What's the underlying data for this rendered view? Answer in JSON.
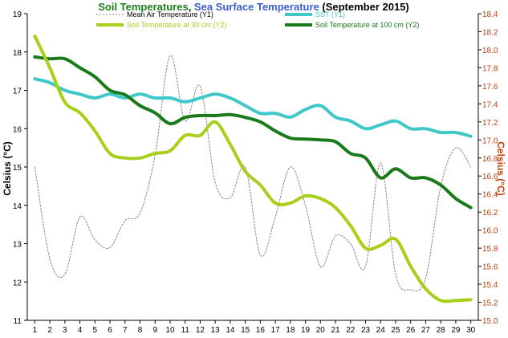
{
  "title": {
    "part1": "Soil Temperatures",
    "sep": ", ",
    "part2": "Sea Surface Temperature",
    "part3": " (September 2015)",
    "colors": {
      "part1": "#1a7f1a",
      "part2": "#3a5fcd",
      "part3": "#000000"
    }
  },
  "chart_data": {
    "type": "line",
    "title": "Soil Temperatures, Sea Surface Temperature (September 2015)",
    "x": [
      1,
      2,
      3,
      4,
      5,
      6,
      7,
      8,
      9,
      10,
      11,
      12,
      13,
      14,
      15,
      16,
      17,
      18,
      19,
      20,
      21,
      22,
      23,
      24,
      25,
      26,
      27,
      28,
      29,
      30
    ],
    "x_tick_labels": [
      "1",
      "2",
      "3",
      "4",
      "5",
      "6",
      "7",
      "8",
      "9",
      "10",
      "11",
      "12",
      "13",
      "14",
      "15",
      "16",
      "17",
      "18",
      "19",
      "20",
      "21",
      "22",
      "23",
      "24",
      "25",
      "26",
      "27",
      "28",
      "29",
      "30"
    ],
    "y1": {
      "label": "Celsius (°C)",
      "min": 11,
      "max": 19,
      "ticks": [
        "11",
        "12",
        "13",
        "14",
        "15",
        "16",
        "17",
        "18",
        "19"
      ],
      "tick_values": [
        11,
        12,
        13,
        14,
        15,
        16,
        17,
        18,
        19
      ],
      "color": "#000000"
    },
    "y2": {
      "label": "Celsius (°C)",
      "min": 15.0,
      "max": 18.4,
      "ticks": [
        "15.0",
        "15.2",
        "15.4",
        "15.6",
        "15.8",
        "16.0",
        "16.2",
        "16.4",
        "16.6",
        "16.8",
        "17.0",
        "17.2",
        "17.4",
        "17.6",
        "17.8",
        "18.0",
        "18.2",
        "18.4"
      ],
      "tick_values": [
        15.0,
        15.2,
        15.4,
        15.6,
        15.8,
        16.0,
        16.2,
        16.4,
        16.6,
        16.8,
        17.0,
        17.2,
        17.4,
        17.6,
        17.8,
        18.0,
        18.2,
        18.4
      ],
      "color": "#c0400a"
    },
    "grid": false,
    "legend_position": "top",
    "series": [
      {
        "name": "Mean Air Temperature (Y1)",
        "axis": "y1",
        "color": "#888888",
        "style": "dotted",
        "values": [
          15.0,
          12.6,
          12.2,
          13.7,
          13.1,
          12.9,
          13.6,
          13.8,
          15.3,
          17.9,
          16.2,
          17.1,
          14.6,
          14.2,
          15.0,
          12.7,
          13.7,
          15.0,
          14.0,
          12.4,
          13.2,
          13.0,
          12.4,
          15.1,
          12.2,
          11.8,
          12.1,
          14.5,
          15.5,
          15.0
        ]
      },
      {
        "name": "SST (Y1)",
        "axis": "y1",
        "color": "#40c8c8",
        "style": "solid",
        "values": [
          17.3,
          17.2,
          17.0,
          16.9,
          16.8,
          16.9,
          16.8,
          16.9,
          16.8,
          16.8,
          16.7,
          16.8,
          16.9,
          16.8,
          16.6,
          16.4,
          16.4,
          16.3,
          16.5,
          16.6,
          16.3,
          16.2,
          16.0,
          16.1,
          16.2,
          16.0,
          16.0,
          15.9,
          15.9,
          15.8
        ]
      },
      {
        "name": "Soil Temperature at 30 cm (Y2)",
        "axis": "y2",
        "color": "#a8cf1a",
        "style": "solid",
        "values": [
          18.15,
          17.8,
          17.42,
          17.3,
          17.1,
          16.85,
          16.8,
          16.8,
          16.85,
          16.88,
          17.05,
          17.05,
          17.2,
          16.95,
          16.65,
          16.5,
          16.3,
          16.3,
          16.38,
          16.35,
          16.25,
          16.05,
          15.8,
          15.83,
          15.9,
          15.6,
          15.35,
          15.22,
          15.22,
          15.23
        ]
      },
      {
        "name": "Soil Temperature at 100 cm (Y2)",
        "axis": "y2",
        "color": "#1a7a1a",
        "style": "solid",
        "values": [
          17.92,
          17.9,
          17.9,
          17.8,
          17.7,
          17.55,
          17.5,
          17.38,
          17.3,
          17.18,
          17.25,
          17.27,
          17.27,
          17.28,
          17.25,
          17.2,
          17.1,
          17.02,
          17.01,
          17.0,
          16.98,
          16.85,
          16.8,
          16.58,
          16.68,
          16.58,
          16.58,
          16.5,
          16.35,
          16.25
        ]
      }
    ]
  }
}
